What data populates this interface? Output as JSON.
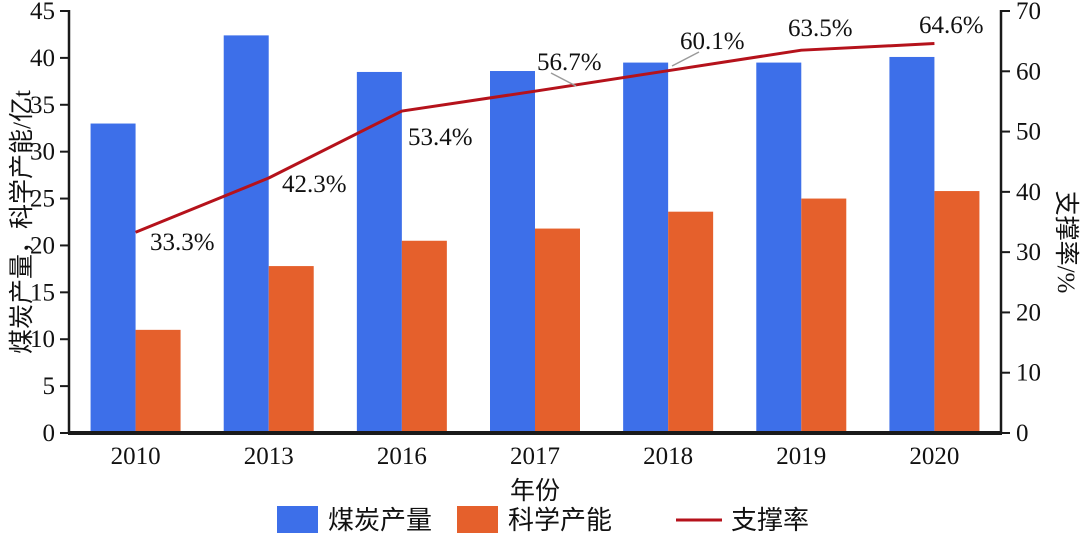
{
  "chart_data": {
    "type": "bar+line",
    "categories": [
      "2010",
      "2013",
      "2016",
      "2017",
      "2018",
      "2019",
      "2020"
    ],
    "series": [
      {
        "name": "煤炭产量",
        "type": "bar",
        "axis": "left",
        "color": "#3D6FE9",
        "values": [
          33.0,
          42.4,
          38.5,
          38.6,
          39.5,
          39.5,
          40.1
        ]
      },
      {
        "name": "科学产能",
        "type": "bar",
        "axis": "left",
        "color": "#E5602C",
        "values": [
          11.0,
          17.8,
          20.5,
          21.8,
          23.6,
          25.0,
          25.8
        ]
      },
      {
        "name": "支撑率",
        "type": "line",
        "axis": "right",
        "color": "#B5121B",
        "values": [
          33.3,
          42.3,
          53.4,
          56.7,
          60.1,
          63.5,
          64.6
        ],
        "point_labels": [
          "33.3%",
          "42.3%",
          "53.4%",
          "56.7%",
          "60.1%",
          "63.5%",
          "64.6%"
        ]
      }
    ],
    "xlabel": "年份",
    "ylabel_left": "煤炭产量，科学产能/亿t",
    "ylabel_right": "支撑率/%",
    "ylim_left": [
      0,
      45
    ],
    "ytick_step_left": 5,
    "left_tick_labels": [
      "0",
      "5",
      "10",
      "15",
      "20",
      "25",
      "30",
      "35",
      "40",
      "45"
    ],
    "ylim_right": [
      0,
      70
    ],
    "ytick_step_right": 10,
    "right_tick_labels": [
      "0",
      "10",
      "20",
      "30",
      "40",
      "50",
      "60",
      "70"
    ],
    "grid": false,
    "legend_position": "bottom",
    "legend": [
      {
        "label": "煤炭产量",
        "swatch": "square",
        "color": "#3D6FE9"
      },
      {
        "label": "科学产能",
        "swatch": "square",
        "color": "#E5602C"
      },
      {
        "label": "支撑率",
        "swatch": "line",
        "color": "#B5121B"
      }
    ]
  }
}
